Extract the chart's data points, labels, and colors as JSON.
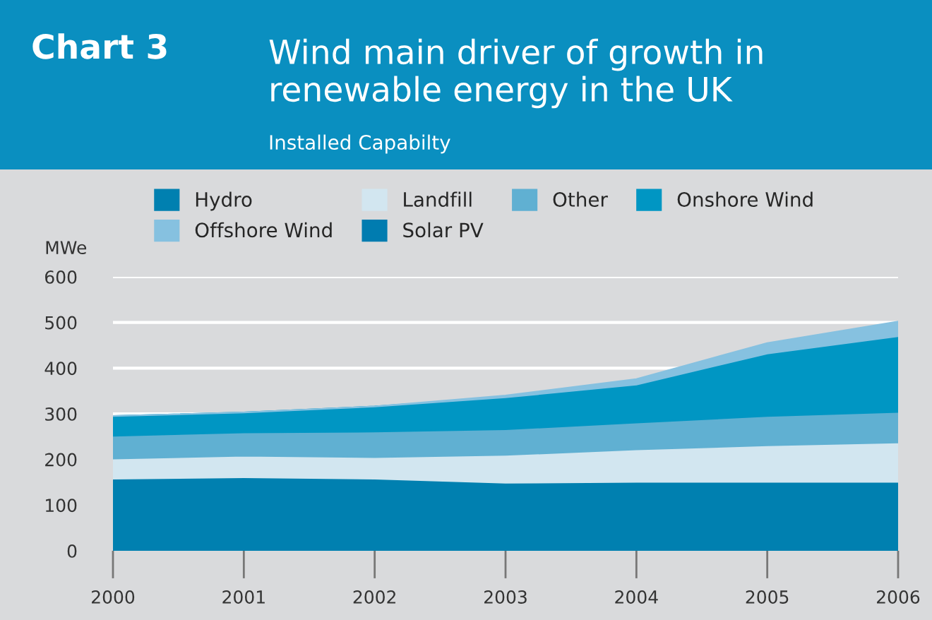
{
  "chart_data": {
    "type": "area",
    "stacked": true,
    "title": "Wind main driver of growth in renewable energy in the UK",
    "subtitle": "Installed Capabilty",
    "annotations": [
      "Chart 3"
    ],
    "ylabel": "MWe",
    "x": [
      2000,
      2001,
      2002,
      2003,
      2004,
      2005,
      2006
    ],
    "xlim": [
      2000,
      2006
    ],
    "xticks": [
      2000,
      2001,
      2002,
      2003,
      2004,
      2005,
      2006
    ],
    "ylim": [
      0,
      600
    ],
    "yticks": [
      0,
      100,
      200,
      300,
      400,
      500,
      600
    ],
    "grid": "y",
    "legend": "top",
    "series": [
      {
        "name": "Hydro",
        "color": "#0080b0",
        "values": [
          158,
          161,
          158,
          149,
          151,
          151,
          151
        ]
      },
      {
        "name": "Landfill",
        "color": "#d2e6f0",
        "values": [
          44,
          47,
          47,
          61,
          71,
          80,
          86
        ]
      },
      {
        "name": "Other",
        "color": "#60b0d2",
        "values": [
          50,
          51,
          56,
          56,
          59,
          64,
          67
        ]
      },
      {
        "name": "Onshore Wind",
        "color": "#0096c3",
        "values": [
          43,
          44,
          55,
          70,
          83,
          137,
          166
        ]
      },
      {
        "name": "Offshore Wind",
        "color": "#86c1e0",
        "values": [
          0,
          0,
          0,
          4,
          12,
          23,
          32
        ]
      },
      {
        "name": "Solar PV",
        "color": "#007cb0",
        "values": [
          null,
          null,
          null,
          null,
          null,
          null,
          null
        ]
      }
    ]
  }
}
